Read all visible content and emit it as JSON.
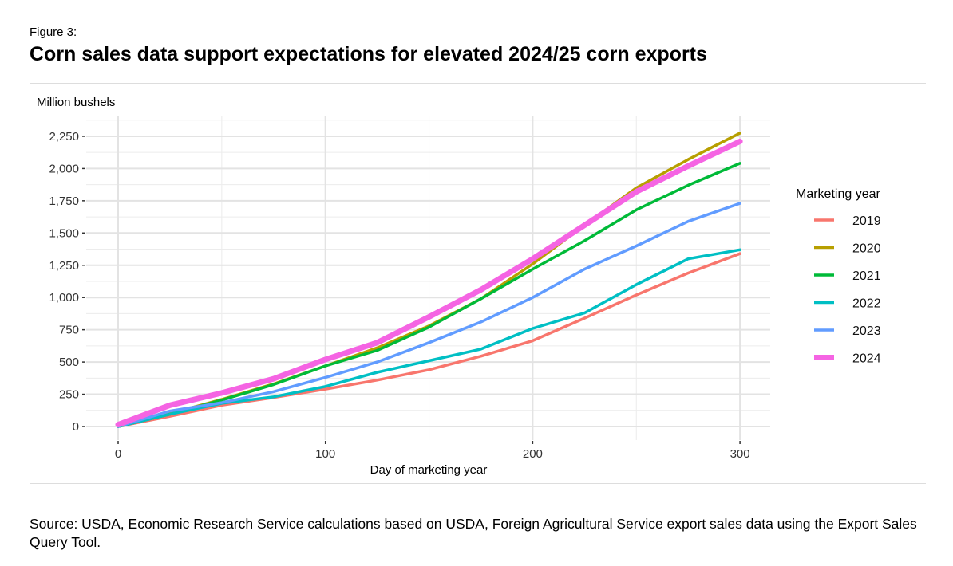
{
  "figure_label": "Figure 3:",
  "title": "Corn sales data support expectations for elevated 2024/25 corn exports",
  "source": "Source: USDA, Economic Research Service calculations based on USDA, Foreign Agricultural Service export sales data using the Export Sales Query Tool.",
  "chart_data": {
    "type": "line",
    "title": "Corn sales data support expectations for elevated 2024/25 corn exports",
    "xlabel": "Day of marketing year",
    "ylabel": "Million bushels",
    "xlim": [
      -14,
      313
    ],
    "ylim": [
      -100,
      2390
    ],
    "xticks": [
      0,
      100,
      200,
      300
    ],
    "xtick_labels": [
      "0",
      "100",
      "200",
      "300"
    ],
    "yticks": [
      0,
      250,
      500,
      750,
      1000,
      1250,
      1500,
      1750,
      2000,
      2250
    ],
    "ytick_labels": [
      "0",
      "250",
      "500",
      "750",
      "1,000",
      "1,250",
      "1,500",
      "1,750",
      "2,000",
      "2,250"
    ],
    "grid": true,
    "legend_title": "Marketing year",
    "legend_position": "right",
    "x": [
      0,
      25,
      50,
      75,
      100,
      125,
      150,
      175,
      200,
      225,
      250,
      275,
      300
    ],
    "series": [
      {
        "name": "2019",
        "color": "#F8766D",
        "values": [
          0,
          80,
          165,
          225,
          290,
          360,
          440,
          545,
          665,
          840,
          1020,
          1190,
          1340
        ]
      },
      {
        "name": "2020",
        "color": "#B79F00",
        "values": [
          0,
          100,
          210,
          330,
          470,
          610,
          780,
          990,
          1260,
          1560,
          1850,
          2070,
          2275
        ]
      },
      {
        "name": "2021",
        "color": "#00BA38",
        "values": [
          0,
          95,
          205,
          325,
          470,
          590,
          770,
          990,
          1220,
          1440,
          1680,
          1870,
          2040
        ]
      },
      {
        "name": "2022",
        "color": "#00BFC4",
        "values": [
          0,
          95,
          180,
          230,
          310,
          420,
          510,
          600,
          760,
          880,
          1100,
          1300,
          1370
        ]
      },
      {
        "name": "2023",
        "color": "#619CFF",
        "values": [
          0,
          120,
          185,
          270,
          380,
          500,
          650,
          810,
          1000,
          1220,
          1400,
          1590,
          1730
        ]
      },
      {
        "name": "2024",
        "color": "#F564E3",
        "values": [
          15,
          165,
          260,
          370,
          520,
          650,
          850,
          1060,
          1300,
          1560,
          1820,
          2020,
          2210
        ]
      }
    ]
  }
}
